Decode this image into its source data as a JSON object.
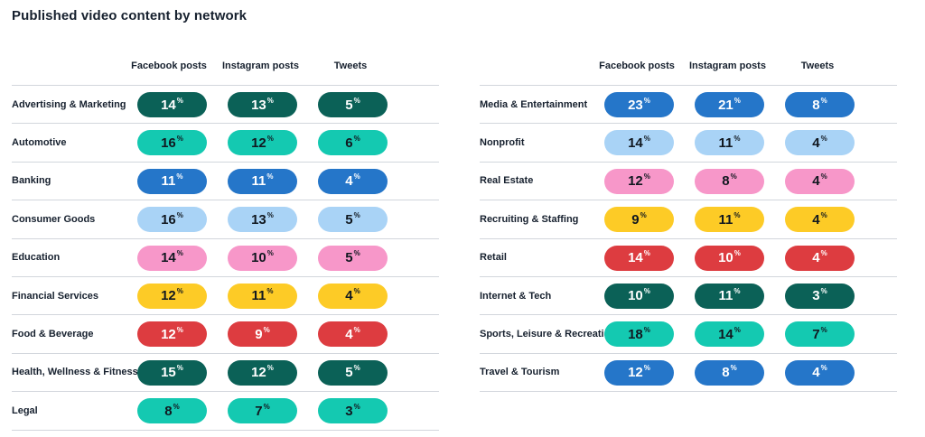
{
  "title": "Published video content by network",
  "chart_data": [
    {
      "type": "table",
      "columns": [
        "Facebook posts",
        "Instagram posts",
        "Tweets"
      ],
      "rows": [
        {
          "label": "Advertising & Marketing",
          "values": [
            "14",
            "13",
            "5"
          ],
          "color": "#0b6157",
          "dark": true
        },
        {
          "label": "Automotive",
          "values": [
            "16",
            "12",
            "6"
          ],
          "color": "#14c9b1",
          "dark": false
        },
        {
          "label": "Banking",
          "values": [
            "11",
            "11",
            "4"
          ],
          "color": "#2576c9",
          "dark": true
        },
        {
          "label": "Consumer Goods",
          "values": [
            "16",
            "13",
            "5"
          ],
          "color": "#a9d3f6",
          "dark": false
        },
        {
          "label": "Education",
          "values": [
            "14",
            "10",
            "5"
          ],
          "color": "#f797c9",
          "dark": false
        },
        {
          "label": "Financial Services",
          "values": [
            "12",
            "11",
            "4"
          ],
          "color": "#fdcb26",
          "dark": false
        },
        {
          "label": "Food & Beverage",
          "values": [
            "12",
            "9",
            "4"
          ],
          "color": "#dd3c40",
          "dark": true
        },
        {
          "label": "Health, Wellness & Fitness",
          "values": [
            "15",
            "12",
            "5"
          ],
          "color": "#0b6157",
          "dark": true
        },
        {
          "label": "Legal",
          "values": [
            "8",
            "7",
            "3"
          ],
          "color": "#14c9b1",
          "dark": false
        }
      ]
    },
    {
      "type": "table",
      "columns": [
        "Facebook posts",
        "Instagram posts",
        "Tweets"
      ],
      "rows": [
        {
          "label": "Media & Entertainment",
          "values": [
            "23",
            "21",
            "8"
          ],
          "color": "#2576c9",
          "dark": true
        },
        {
          "label": "Nonprofit",
          "values": [
            "14",
            "11",
            "4"
          ],
          "color": "#a9d3f6",
          "dark": false
        },
        {
          "label": "Real Estate",
          "values": [
            "12",
            "8",
            "4"
          ],
          "color": "#f797c9",
          "dark": false
        },
        {
          "label": "Recruiting & Staffing",
          "values": [
            "9",
            "11",
            "4"
          ],
          "color": "#fdcb26",
          "dark": false
        },
        {
          "label": "Retail",
          "values": [
            "14",
            "10",
            "4"
          ],
          "color": "#dd3c40",
          "dark": true
        },
        {
          "label": "Internet & Tech",
          "values": [
            "10",
            "11",
            "3"
          ],
          "color": "#0b6157",
          "dark": true
        },
        {
          "label": "Sports, Leisure & Recreation",
          "values": [
            "18",
            "14",
            "7"
          ],
          "color": "#14c9b1",
          "dark": false
        },
        {
          "label": "Travel & Tourism",
          "values": [
            "12",
            "8",
            "4"
          ],
          "color": "#2576c9",
          "dark": true
        }
      ]
    }
  ],
  "value_suffix": "%"
}
